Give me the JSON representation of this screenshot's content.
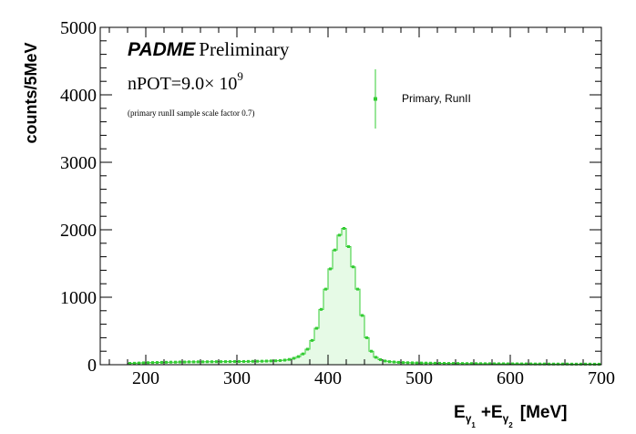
{
  "chart_data": {
    "type": "line",
    "title": "",
    "xlabel": {
      "base": "E",
      "gamma": "γ",
      "sub1": "1",
      "plus": "+E",
      "sub2": "2",
      "unit": "[MeV]"
    },
    "ylabel": "counts/5MeV",
    "xlim": [
      150,
      700
    ],
    "ylim": [
      0,
      5000
    ],
    "x_ticks": [
      200,
      300,
      400,
      500,
      600,
      700
    ],
    "y_ticks": [
      0,
      1000,
      2000,
      3000,
      4000,
      5000
    ],
    "annotations": {
      "experiment": "PADME",
      "status": "Preliminary",
      "npot_prefix": "nPOT=9.0× 10",
      "npot_exponent": "9",
      "note": "(primary runII sample scale factor 0.7)"
    },
    "legend": {
      "position": "top-right",
      "entries": [
        "Primary, RunII"
      ]
    },
    "series": [
      {
        "name": "Primary, RunII",
        "color": "#33cc33",
        "fill": "#e6fae6",
        "bin_width": 5,
        "x": [
          182.5,
          187.5,
          192.5,
          197.5,
          202.5,
          207.5,
          212.5,
          217.5,
          222.5,
          227.5,
          232.5,
          237.5,
          242.5,
          247.5,
          252.5,
          257.5,
          262.5,
          267.5,
          272.5,
          277.5,
          282.5,
          287.5,
          292.5,
          297.5,
          302.5,
          307.5,
          312.5,
          317.5,
          322.5,
          327.5,
          332.5,
          337.5,
          342.5,
          347.5,
          352.5,
          357.5,
          362.5,
          367.5,
          372.5,
          377.5,
          382.5,
          387.5,
          392.5,
          397.5,
          402.5,
          407.5,
          412.5,
          417.5,
          422.5,
          427.5,
          432.5,
          437.5,
          442.5,
          447.5,
          452.5,
          457.5,
          462.5,
          467.5,
          472.5,
          477.5,
          482.5,
          487.5,
          492.5,
          497.5,
          502.5,
          507.5,
          512.5,
          517.5,
          522.5,
          527.5,
          532.5,
          537.5,
          542.5,
          547.5,
          552.5,
          557.5,
          562.5,
          567.5,
          572.5,
          577.5,
          582.5,
          587.5,
          592.5,
          597.5,
          602.5,
          607.5,
          612.5,
          617.5,
          622.5,
          627.5,
          632.5,
          637.5,
          642.5,
          647.5,
          652.5,
          657.5,
          662.5,
          667.5,
          672.5,
          677.5,
          682.5,
          687.5,
          692.5,
          697.5
        ],
        "values": [
          20,
          22,
          25,
          28,
          30,
          32,
          33,
          35,
          36,
          38,
          38,
          40,
          40,
          42,
          42,
          43,
          43,
          44,
          44,
          45,
          45,
          46,
          46,
          47,
          47,
          48,
          49,
          50,
          51,
          52,
          54,
          56,
          58,
          62,
          68,
          78,
          95,
          120,
          160,
          230,
          360,
          540,
          820,
          1120,
          1420,
          1700,
          1920,
          2020,
          1750,
          1450,
          1120,
          730,
          400,
          200,
          110,
          75,
          55,
          45,
          40,
          35,
          32,
          30,
          28,
          26,
          25,
          24,
          23,
          22,
          21,
          20,
          19,
          19,
          18,
          18,
          17,
          17,
          16,
          16,
          15,
          15,
          14,
          14,
          14,
          13,
          13,
          13,
          12,
          12,
          12,
          11,
          11,
          11,
          10,
          10,
          10,
          10,
          10,
          9,
          9,
          9,
          9,
          9,
          8,
          8
        ]
      }
    ]
  }
}
